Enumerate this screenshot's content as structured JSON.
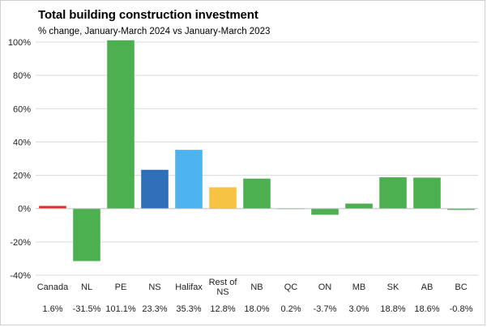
{
  "chart_data": {
    "type": "bar",
    "title": "Total building construction investment",
    "subtitle": "% change, January-March 2024 vs January-March 2023",
    "categories": [
      [
        "Canada"
      ],
      [
        "NL"
      ],
      [
        "PE"
      ],
      [
        "NS"
      ],
      [
        "Halifax"
      ],
      [
        "Rest of",
        "NS"
      ],
      [
        "NB"
      ],
      [
        "QC"
      ],
      [
        "ON"
      ],
      [
        "MB"
      ],
      [
        "SK"
      ],
      [
        "AB"
      ],
      [
        "BC"
      ]
    ],
    "values": [
      1.6,
      -31.5,
      101.1,
      23.3,
      35.3,
      12.8,
      18.0,
      0.2,
      -3.7,
      3.0,
      18.8,
      18.6,
      -0.8
    ],
    "value_labels": [
      "1.6%",
      "-31.5%",
      "101.1%",
      "23.3%",
      "35.3%",
      "12.8%",
      "18.0%",
      "0.2%",
      "-3.7%",
      "3.0%",
      "18.8%",
      "18.6%",
      "-0.8%"
    ],
    "colors": [
      "#e32b2b",
      "#4caf50",
      "#4caf50",
      "#2e6fb8",
      "#4db3ee",
      "#f5c242",
      "#4caf50",
      "#4caf50",
      "#4caf50",
      "#4caf50",
      "#4caf50",
      "#4caf50",
      "#4caf50"
    ],
    "yticks": [
      "100%",
      "80%",
      "60%",
      "40%",
      "20%",
      "0%",
      "-20%",
      "-40%"
    ],
    "ytick_values": [
      100,
      80,
      60,
      40,
      20,
      0,
      -20,
      -40
    ],
    "ylim": [
      -40,
      100
    ],
    "grid": true,
    "legend": "none"
  }
}
